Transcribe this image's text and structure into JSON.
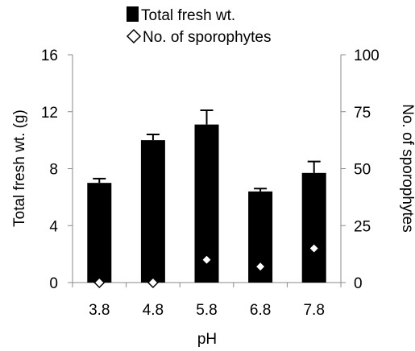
{
  "chart_data": {
    "type": "bar",
    "xlabel": "pH",
    "ylabel": "Total fresh wt. (g)",
    "y2label": "No. of sporophytes",
    "categories": [
      "3.8",
      "4.8",
      "5.8",
      "6.8",
      "7.8"
    ],
    "ylim": [
      0,
      16
    ],
    "y2lim": [
      0,
      100
    ],
    "yticks": [
      "0",
      "4",
      "8",
      "12",
      "16"
    ],
    "y2ticks": [
      "0",
      "25",
      "50",
      "75",
      "100"
    ],
    "grid": false,
    "legend_position": "top",
    "series": [
      {
        "name": "Total fresh wt.",
        "kind": "bar",
        "axis": "left",
        "color": "#000000",
        "values": [
          7.0,
          10.0,
          11.1,
          6.4,
          7.7
        ],
        "error": [
          0.3,
          0.4,
          1.0,
          0.2,
          0.8
        ]
      },
      {
        "name": "No. of sporophytes",
        "kind": "marker",
        "marker": "diamond-open",
        "axis": "right",
        "color": "#ffffff",
        "values": [
          0,
          0,
          10,
          7,
          15
        ]
      }
    ]
  }
}
